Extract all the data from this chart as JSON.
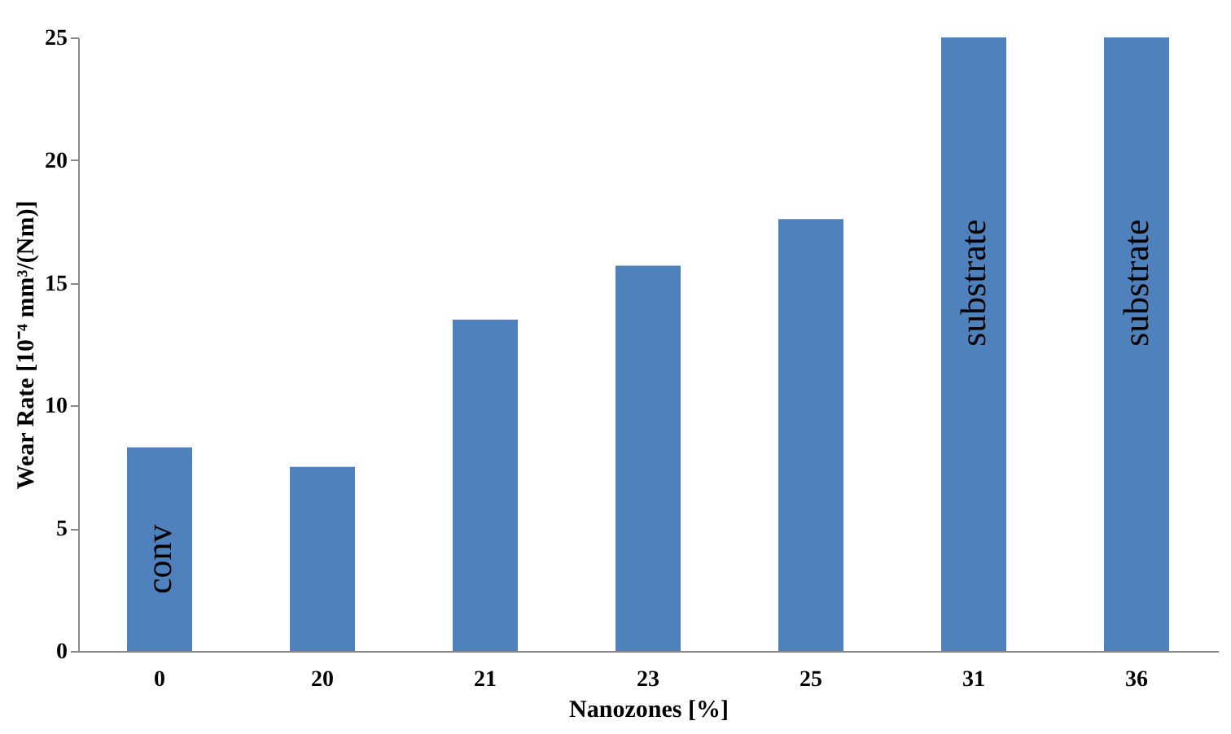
{
  "chart_data": {
    "type": "bar",
    "xlabel": "Nanozones [%]",
    "ylabel": "Wear Rate [10⁻⁴ mm³/(Nm)]",
    "categories": [
      "0",
      "20",
      "21",
      "23",
      "25",
      "31",
      "36"
    ],
    "values": [
      8.3,
      7.5,
      13.5,
      15.7,
      17.6,
      25,
      25
    ],
    "color": "#4f81bd",
    "ylim": [
      0,
      25
    ],
    "yticks": [
      0,
      5,
      10,
      15,
      20,
      25
    ],
    "grid": false,
    "annotations": [
      "conv",
      "substrate",
      "substrate"
    ]
  }
}
